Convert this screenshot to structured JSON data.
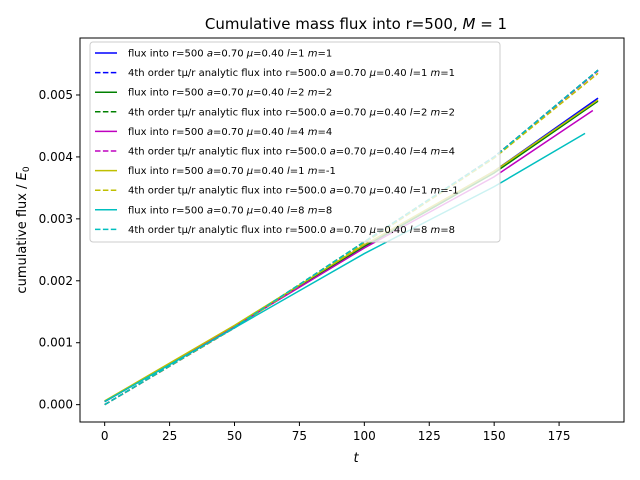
{
  "chart_data": {
    "type": "line",
    "title": "Cumulative mass flux into r=500, M = 1",
    "title_parts": {
      "prefix": "Cumulative mass flux into r=500, ",
      "math_var": "M",
      "suffix": " = 1"
    },
    "xlabel": "t",
    "ylabel": "cumulative flux / E0",
    "ylabel_parts": {
      "prefix": "cumulative flux / ",
      "var": "E",
      "sub": "0"
    },
    "xlim": [
      -9.5,
      200
    ],
    "ylim": [
      -0.00028,
      0.00592
    ],
    "xticks": [
      0,
      25,
      50,
      75,
      100,
      125,
      150,
      175
    ],
    "xtick_labels": [
      "0",
      "25",
      "50",
      "75",
      "100",
      "125",
      "150",
      "175"
    ],
    "yticks": [
      0,
      0.001,
      0.002,
      0.003,
      0.004,
      0.005
    ],
    "ytick_labels": [
      "0.000",
      "0.001",
      "0.002",
      "0.003",
      "0.004",
      "0.005"
    ],
    "grid": false,
    "legend_position": "top-left",
    "series": [
      {
        "name": "flux into r=500 a=0.70 μ=0.40 l=1 m=1",
        "color": "#0000ff",
        "style": "solid",
        "x": [
          0,
          50,
          100,
          150,
          190
        ],
        "y": [
          5e-05,
          0.00126,
          0.00257,
          0.00377,
          0.00495
        ]
      },
      {
        "name": "4th order tμ/r analytic flux into r=500.0 a=0.70 μ=0.40 l=1 m=1",
        "color": "#0000ff",
        "style": "dashed",
        "x": [
          0,
          50,
          100,
          150,
          190
        ],
        "y": [
          0.0,
          0.00124,
          0.00262,
          0.004,
          0.0054
        ]
      },
      {
        "name": "flux into r=500 a=0.70 μ=0.40 l=2 m=2",
        "color": "#008000",
        "style": "solid",
        "x": [
          0,
          50,
          100,
          150,
          190
        ],
        "y": [
          5e-05,
          0.00126,
          0.00255,
          0.00374,
          0.0049
        ]
      },
      {
        "name": "4th order tμ/r analytic flux into r=500.0 a=0.70 μ=0.40 l=2 m=2",
        "color": "#008000",
        "style": "dashed",
        "x": [
          0,
          50,
          100,
          150,
          190
        ],
        "y": [
          0.0,
          0.00125,
          0.00263,
          0.004,
          0.0054
        ]
      },
      {
        "name": "flux into r=500 a=0.70 μ=0.40 l=4 m=4",
        "color": "#bf00bf",
        "style": "solid",
        "x": [
          0,
          50,
          100,
          150,
          188
        ],
        "y": [
          5e-05,
          0.00126,
          0.00253,
          0.00368,
          0.00475
        ]
      },
      {
        "name": "4th order tμ/r analytic flux into r=500.0 a=0.70 μ=0.40 l=4 m=4",
        "color": "#bf00bf",
        "style": "dashed",
        "x": [
          0,
          50,
          100,
          150,
          190
        ],
        "y": [
          0.0,
          0.00124,
          0.00262,
          0.004,
          0.00539
        ]
      },
      {
        "name": "flux into r=500 a=0.70 μ=0.40 l=1 m=-1",
        "color": "#bfbf00",
        "style": "solid",
        "x": [
          0,
          50,
          100,
          150,
          190
        ],
        "y": [
          6e-05,
          0.00128,
          0.00258,
          0.00377,
          0.00492
        ]
      },
      {
        "name": "4th order tμ/r analytic flux into r=500.0 a=0.70 μ=0.40 l=1 m=-1",
        "color": "#bfbf00",
        "style": "dashed",
        "x": [
          0,
          50,
          100,
          150,
          190
        ],
        "y": [
          0.0,
          0.00124,
          0.00261,
          0.00398,
          0.00535
        ]
      },
      {
        "name": "flux into r=500 a=0.70 μ=0.40 l=8 m=8",
        "color": "#00bfbf",
        "style": "solid",
        "x": [
          0,
          50,
          100,
          150,
          185
        ],
        "y": [
          5e-05,
          0.00124,
          0.00244,
          0.00352,
          0.00438
        ]
      },
      {
        "name": "4th order tμ/r analytic flux into r=500.0 a=0.70 μ=0.40 l=8 m=8",
        "color": "#00bfbf",
        "style": "dashed",
        "x": [
          0,
          50,
          100,
          150,
          190
        ],
        "y": [
          0.0,
          0.00125,
          0.00263,
          0.004,
          0.0054
        ]
      }
    ],
    "legend_entries": [
      {
        "pre": "flux into r=500 ",
        "v1": "a",
        "m1": "=0.70 ",
        "v2": "μ",
        "m2": "=0.40 ",
        "v3": "l",
        "m3": "=1 ",
        "v4": "m",
        "m4": "=1"
      },
      {
        "pre": "4th order tμ/r analytic flux into r=500.0 ",
        "v1": "a",
        "m1": "=0.70 ",
        "v2": "μ",
        "m2": "=0.40 ",
        "v3": "l",
        "m3": "=1 ",
        "v4": "m",
        "m4": "=1"
      },
      {
        "pre": "flux into r=500 ",
        "v1": "a",
        "m1": "=0.70 ",
        "v2": "μ",
        "m2": "=0.40 ",
        "v3": "l",
        "m3": "=2 ",
        "v4": "m",
        "m4": "=2"
      },
      {
        "pre": "4th order tμ/r analytic flux into r=500.0 ",
        "v1": "a",
        "m1": "=0.70 ",
        "v2": "μ",
        "m2": "=0.40 ",
        "v3": "l",
        "m3": "=2 ",
        "v4": "m",
        "m4": "=2"
      },
      {
        "pre": "flux into r=500 ",
        "v1": "a",
        "m1": "=0.70 ",
        "v2": "μ",
        "m2": "=0.40 ",
        "v3": "l",
        "m3": "=4 ",
        "v4": "m",
        "m4": "=4"
      },
      {
        "pre": "4th order tμ/r analytic flux into r=500.0 ",
        "v1": "a",
        "m1": "=0.70 ",
        "v2": "μ",
        "m2": "=0.40 ",
        "v3": "l",
        "m3": "=4 ",
        "v4": "m",
        "m4": "=4"
      },
      {
        "pre": "flux into r=500 ",
        "v1": "a",
        "m1": "=0.70 ",
        "v2": "μ",
        "m2": "=0.40 ",
        "v3": "l",
        "m3": "=1 ",
        "v4": "m",
        "m4": "=-1"
      },
      {
        "pre": "4th order tμ/r analytic flux into r=500.0 ",
        "v1": "a",
        "m1": "=0.70 ",
        "v2": "μ",
        "m2": "=0.40 ",
        "v3": "l",
        "m3": "=1 ",
        "v4": "m",
        "m4": "=-1"
      },
      {
        "pre": "flux into r=500 ",
        "v1": "a",
        "m1": "=0.70 ",
        "v2": "μ",
        "m2": "=0.40 ",
        "v3": "l",
        "m3": "=8 ",
        "v4": "m",
        "m4": "=8"
      },
      {
        "pre": "4th order tμ/r analytic flux into r=500.0 ",
        "v1": "a",
        "m1": "=0.70 ",
        "v2": "μ",
        "m2": "=0.40 ",
        "v3": "l",
        "m3": "=8 ",
        "v4": "m",
        "m4": "=8"
      }
    ]
  }
}
